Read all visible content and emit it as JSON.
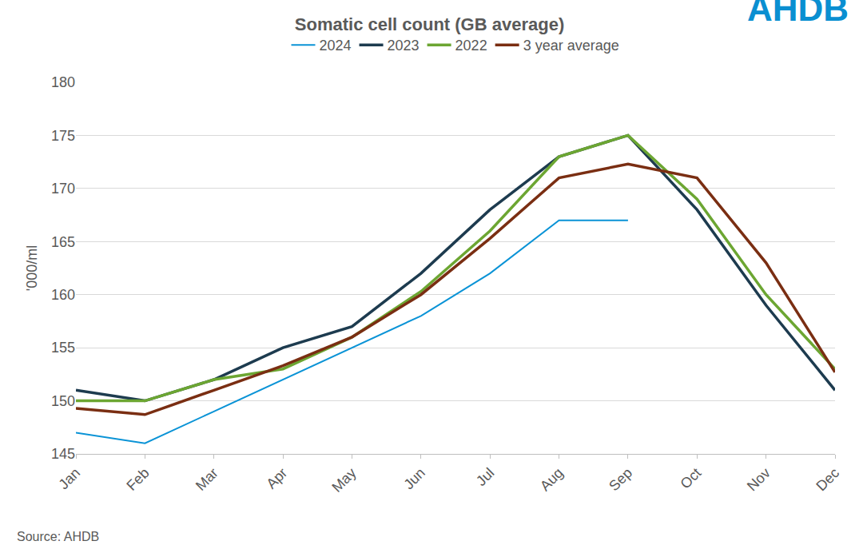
{
  "chart_data": {
    "type": "line",
    "title": "Somatic cell count (GB average)",
    "y_label": "'000/ml",
    "source": "Source: AHDB",
    "logo_text": "AHDB",
    "categories": [
      "Jan",
      "Feb",
      "Mar",
      "Apr",
      "May",
      "Jun",
      "Jul",
      "Aug",
      "Sep",
      "Oct",
      "Nov",
      "Dec"
    ],
    "series": [
      {
        "name": "2024",
        "color": "#0a93d6",
        "values": [
          147,
          146,
          149,
          152,
          155,
          158,
          162,
          167,
          167,
          null,
          null,
          null
        ]
      },
      {
        "name": "2023",
        "color": "#1d3b4f",
        "values": [
          151,
          150,
          152,
          155,
          157,
          162,
          168,
          173,
          175,
          168,
          159,
          151
        ]
      },
      {
        "name": "2022",
        "color": "#6ca632",
        "values": [
          150,
          150,
          152,
          153,
          156,
          160.3,
          166,
          173,
          175,
          169,
          160,
          153
        ]
      },
      {
        "name": "3 year average",
        "color": "#7a2e12",
        "values": [
          149.3,
          148.7,
          151,
          153.3,
          156,
          160,
          165.3,
          171,
          172.3,
          171,
          163,
          152.7
        ]
      }
    ],
    "ylim": [
      145,
      180
    ],
    "yticks": [
      145,
      150,
      155,
      160,
      165,
      170,
      175,
      180
    ],
    "grid": true,
    "legend": "top"
  }
}
